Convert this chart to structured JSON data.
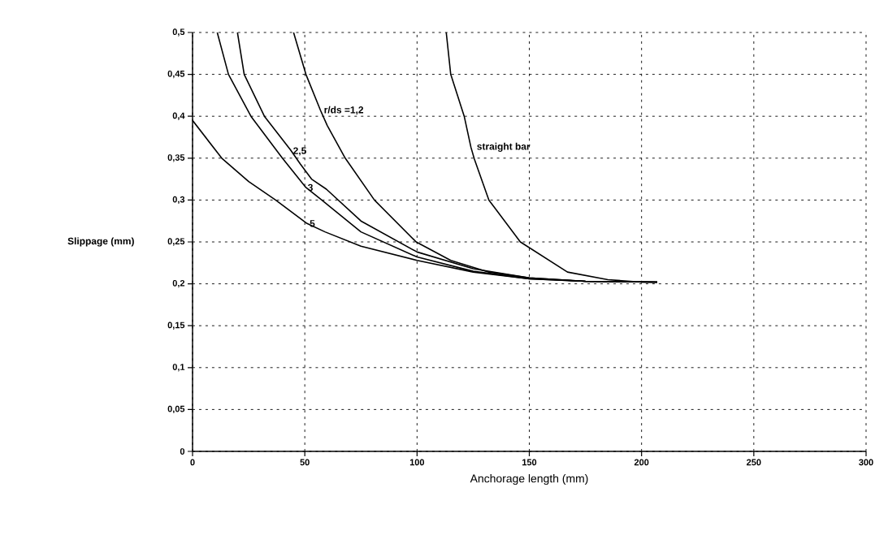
{
  "chart_data": {
    "type": "line",
    "xlabel": "Anchorage length (mm)",
    "ylabel": "Slippage (mm)",
    "xlim": [
      0,
      300
    ],
    "ylim": [
      0,
      0.5
    ],
    "xticks": [
      0,
      50,
      100,
      150,
      200,
      250,
      300
    ],
    "yticks": [
      0,
      {
        "value": 0.05,
        "label": "0,05"
      },
      {
        "value": 0.1,
        "label": "0,1"
      },
      {
        "value": 0.15,
        "label": "0,15"
      },
      {
        "value": 0.2,
        "label": "0,2"
      },
      {
        "value": 0.25,
        "label": "0,25"
      },
      {
        "value": 0.3,
        "label": "0,3"
      },
      {
        "value": 0.35,
        "label": "0,35"
      },
      {
        "value": 0.4,
        "label": "0,4"
      },
      {
        "value": 0.45,
        "label": "0,45"
      },
      {
        "value": 0.5,
        "label": "0,5"
      }
    ],
    "grid": true,
    "legend": false,
    "marker": "none",
    "line_style": "solid",
    "series": [
      {
        "name": "r/ds =1,2",
        "color": "#000000",
        "x": [
          45,
          50.5,
          57,
          60,
          68,
          81,
          99.6,
          115,
          132,
          150,
          175,
          207
        ],
        "values": [
          0.5,
          0.45,
          0.407,
          0.389,
          0.35,
          0.3,
          0.25,
          0.228,
          0.214,
          0.207,
          0.203,
          0.202
        ]
      },
      {
        "name": "2,5",
        "color": "#000000",
        "x": [
          20,
          23,
          32,
          43.6,
          48,
          53,
          59.6,
          75,
          100,
          125,
          150,
          175,
          207
        ],
        "values": [
          0.5,
          0.45,
          0.4,
          0.36,
          0.343,
          0.325,
          0.313,
          0.275,
          0.238,
          0.218,
          0.207,
          0.203,
          0.202
        ]
      },
      {
        "name": "3",
        "color": "#000000",
        "x": [
          11,
          16,
          26,
          40,
          50.5,
          58,
          75,
          100,
          125,
          150,
          175,
          207
        ],
        "values": [
          0.5,
          0.45,
          0.4,
          0.35,
          0.315,
          0.299,
          0.262,
          0.232,
          0.215,
          0.206,
          0.203,
          0.202
        ]
      },
      {
        "name": "5",
        "color": "#000000",
        "x": [
          0,
          13,
          25,
          37,
          51,
          59,
          75,
          100,
          125,
          150,
          175,
          207
        ],
        "values": [
          0.395,
          0.35,
          0.322,
          0.3,
          0.272,
          0.262,
          0.245,
          0.228,
          0.214,
          0.206,
          0.203,
          0.202
        ]
      },
      {
        "name": "straight bar",
        "color": "#000000",
        "x": [
          113,
          115,
          121,
          124,
          125.5,
          132,
          146,
          167,
          185,
          200,
          207
        ],
        "values": [
          0.5,
          0.45,
          0.4,
          0.363,
          0.349,
          0.3,
          0.25,
          0.214,
          0.205,
          0.202,
          0.202
        ]
      }
    ]
  }
}
